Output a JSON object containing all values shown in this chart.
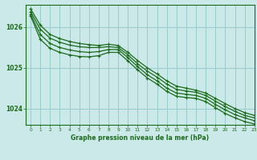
{
  "title": "Graphe pression niveau de la mer (hPa)",
  "bg_color": "#cce9e9",
  "grid_color": "#99cccc",
  "line_color": "#1a6b1a",
  "xlim": [
    -0.5,
    23
  ],
  "ylim": [
    1023.6,
    1026.55
  ],
  "yticks": [
    1024,
    1025,
    1026
  ],
  "xticks": [
    0,
    1,
    2,
    3,
    4,
    5,
    6,
    7,
    8,
    9,
    10,
    11,
    12,
    13,
    14,
    15,
    16,
    17,
    18,
    19,
    20,
    21,
    22,
    23
  ],
  "series": [
    [
      1026.45,
      1026.05,
      1025.82,
      1025.72,
      1025.65,
      1025.6,
      1025.57,
      1025.55,
      1025.58,
      1025.55,
      1025.38,
      1025.18,
      1025.0,
      1024.85,
      1024.68,
      1024.55,
      1024.5,
      1024.45,
      1024.38,
      1024.25,
      1024.12,
      1024.0,
      1023.9,
      1023.83
    ],
    [
      1026.38,
      1025.95,
      1025.73,
      1025.63,
      1025.56,
      1025.52,
      1025.5,
      1025.5,
      1025.52,
      1025.5,
      1025.32,
      1025.1,
      1024.92,
      1024.77,
      1024.6,
      1024.47,
      1024.43,
      1024.4,
      1024.32,
      1024.18,
      1024.05,
      1023.93,
      1023.83,
      1023.77
    ],
    [
      1026.32,
      1025.82,
      1025.6,
      1025.5,
      1025.44,
      1025.4,
      1025.38,
      1025.4,
      1025.45,
      1025.45,
      1025.25,
      1025.03,
      1024.83,
      1024.68,
      1024.5,
      1024.38,
      1024.35,
      1024.32,
      1024.25,
      1024.1,
      1023.97,
      1023.85,
      1023.77,
      1023.7
    ],
    [
      1026.28,
      1025.7,
      1025.48,
      1025.38,
      1025.32,
      1025.28,
      1025.27,
      1025.3,
      1025.38,
      1025.38,
      1025.17,
      1024.95,
      1024.75,
      1024.6,
      1024.42,
      1024.3,
      1024.27,
      1024.25,
      1024.17,
      1024.02,
      1023.88,
      1023.77,
      1023.68,
      1023.62
    ]
  ]
}
